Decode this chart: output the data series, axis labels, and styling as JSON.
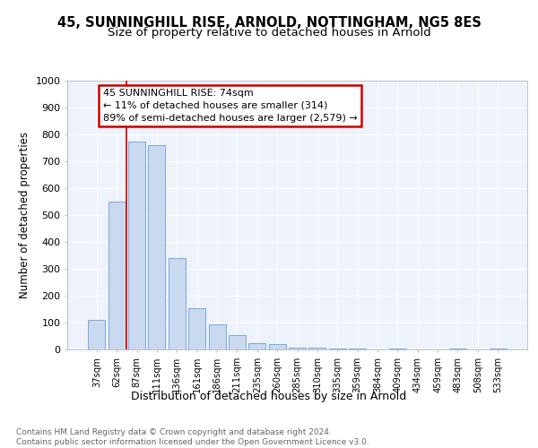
{
  "title1": "45, SUNNINGHILL RISE, ARNOLD, NOTTINGHAM, NG5 8ES",
  "title2": "Size of property relative to detached houses in Arnold",
  "xlabel": "Distribution of detached houses by size in Arnold",
  "ylabel": "Number of detached properties",
  "categories": [
    "37sqm",
    "62sqm",
    "87sqm",
    "111sqm",
    "136sqm",
    "161sqm",
    "186sqm",
    "211sqm",
    "235sqm",
    "260sqm",
    "285sqm",
    "310sqm",
    "335sqm",
    "359sqm",
    "384sqm",
    "409sqm",
    "434sqm",
    "459sqm",
    "483sqm",
    "508sqm",
    "533sqm"
  ],
  "values": [
    110,
    550,
    775,
    760,
    340,
    155,
    95,
    55,
    25,
    20,
    8,
    6,
    5,
    5,
    1,
    5,
    1,
    1,
    5,
    1,
    3
  ],
  "bar_color": "#c9d9f0",
  "bar_edge_color": "#6a9fd8",
  "background_color": "#eef2fb",
  "grid_color": "#ffffff",
  "annotation_line1": "45 SUNNINGHILL RISE: 74sqm",
  "annotation_line2": "← 11% of detached houses are smaller (314)",
  "annotation_line3": "89% of semi-detached houses are larger (2,579) →",
  "annotation_box_color": "#ffffff",
  "annotation_box_edge_color": "#cc0000",
  "red_line_x": 1.5,
  "ylim": [
    0,
    1000
  ],
  "yticks": [
    0,
    100,
    200,
    300,
    400,
    500,
    600,
    700,
    800,
    900,
    1000
  ],
  "footer": "Contains HM Land Registry data © Crown copyright and database right 2024.\nContains public sector information licensed under the Open Government Licence v3.0.",
  "title1_fontsize": 10.5,
  "title2_fontsize": 9.5,
  "xlabel_fontsize": 9,
  "ylabel_fontsize": 8.5,
  "annotation_fontsize": 8,
  "footer_fontsize": 6.5
}
